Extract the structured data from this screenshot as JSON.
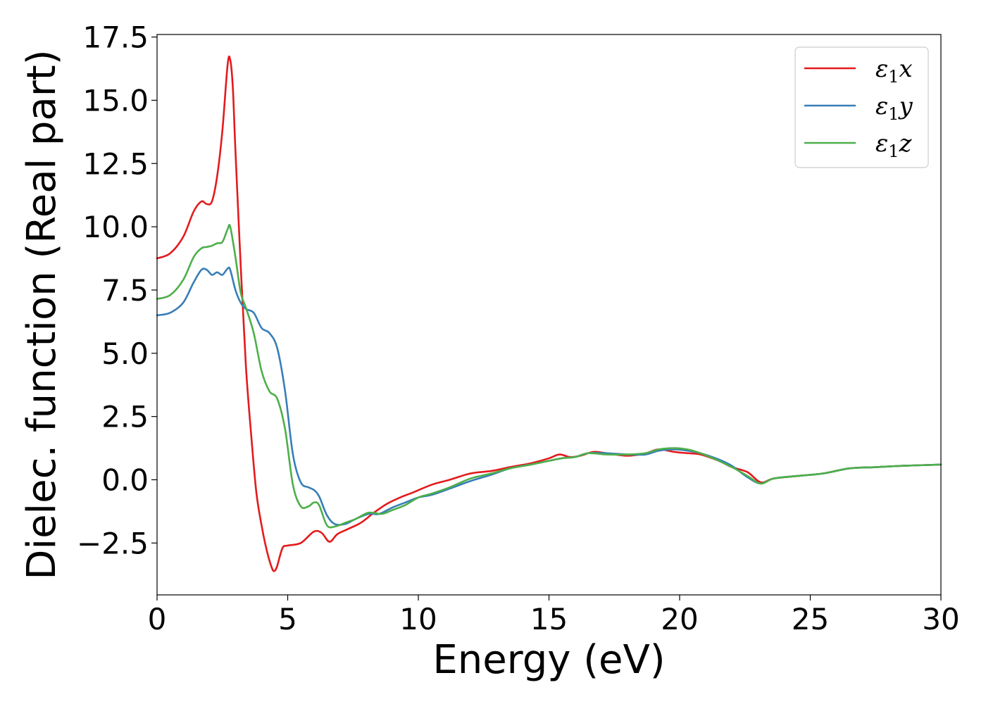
{
  "chart_data": {
    "type": "line",
    "title": "",
    "xlabel": "Energy (eV)",
    "ylabel": "Dielec. function (Real part)",
    "xlim": [
      0,
      30
    ],
    "ylim": [
      -4.55,
      17.6
    ],
    "x_ticks": [
      0,
      5,
      10,
      15,
      20,
      25,
      30
    ],
    "x_tick_labels": [
      "0",
      "5",
      "10",
      "15",
      "20",
      "25",
      "30"
    ],
    "y_ticks": [
      -2.5,
      0.0,
      2.5,
      5.0,
      7.5,
      10.0,
      12.5,
      15.0,
      17.5
    ],
    "y_tick_labels": [
      "−2.5",
      "0.0",
      "2.5",
      "5.0",
      "7.5",
      "10.0",
      "12.5",
      "15.0",
      "17.5"
    ],
    "grid": false,
    "legend_position": "top-right",
    "legend": [
      {
        "base": "ε",
        "sub": "1",
        "comp": "x",
        "color": "#e41a1c"
      },
      {
        "base": "ε",
        "sub": "1",
        "comp": "y",
        "color": "#377eb8"
      },
      {
        "base": "ε",
        "sub": "1",
        "comp": "z",
        "color": "#4daf4a"
      }
    ],
    "series": [
      {
        "color": "#e41a1c",
        "points": [
          [
            0,
            8.75
          ],
          [
            0.5,
            8.95
          ],
          [
            1.0,
            9.6
          ],
          [
            1.4,
            10.6
          ],
          [
            1.7,
            11.0
          ],
          [
            1.9,
            10.9
          ],
          [
            2.1,
            11.0
          ],
          [
            2.3,
            12.0
          ],
          [
            2.5,
            13.8
          ],
          [
            2.7,
            16.4
          ],
          [
            2.8,
            16.6
          ],
          [
            2.9,
            15.5
          ],
          [
            3.0,
            13.0
          ],
          [
            3.2,
            8.5
          ],
          [
            3.4,
            4.5
          ],
          [
            3.6,
            1.8
          ],
          [
            3.8,
            -0.5
          ],
          [
            4.0,
            -1.8
          ],
          [
            4.2,
            -2.8
          ],
          [
            4.4,
            -3.5
          ],
          [
            4.5,
            -3.6
          ],
          [
            4.6,
            -3.4
          ],
          [
            4.8,
            -2.7
          ],
          [
            5.0,
            -2.6
          ],
          [
            5.5,
            -2.5
          ],
          [
            6.0,
            -2.05
          ],
          [
            6.3,
            -2.1
          ],
          [
            6.6,
            -2.45
          ],
          [
            6.9,
            -2.15
          ],
          [
            7.3,
            -1.95
          ],
          [
            7.8,
            -1.7
          ],
          [
            8.3,
            -1.3
          ],
          [
            8.8,
            -0.95
          ],
          [
            9.3,
            -0.7
          ],
          [
            9.8,
            -0.5
          ],
          [
            10.5,
            -0.2
          ],
          [
            11.2,
            0.0
          ],
          [
            12.0,
            0.25
          ],
          [
            12.8,
            0.35
          ],
          [
            13.5,
            0.5
          ],
          [
            14.3,
            0.65
          ],
          [
            15.0,
            0.85
          ],
          [
            15.4,
            1.0
          ],
          [
            15.8,
            0.9
          ],
          [
            16.2,
            0.95
          ],
          [
            16.7,
            1.1
          ],
          [
            17.2,
            1.05
          ],
          [
            18.0,
            0.95
          ],
          [
            18.7,
            1.05
          ],
          [
            19.2,
            1.2
          ],
          [
            19.8,
            1.1
          ],
          [
            20.3,
            1.05
          ],
          [
            20.8,
            1.0
          ],
          [
            21.5,
            0.75
          ],
          [
            22.0,
            0.5
          ],
          [
            22.6,
            0.3
          ],
          [
            23.1,
            -0.1
          ],
          [
            23.6,
            0.05
          ],
          [
            24.5,
            0.15
          ],
          [
            25.5,
            0.25
          ],
          [
            26.5,
            0.45
          ],
          [
            27.5,
            0.5
          ],
          [
            28.5,
            0.55
          ],
          [
            30,
            0.6
          ]
        ]
      },
      {
        "color": "#377eb8",
        "points": [
          [
            0,
            6.5
          ],
          [
            0.5,
            6.6
          ],
          [
            1.0,
            7.0
          ],
          [
            1.4,
            7.8
          ],
          [
            1.7,
            8.3
          ],
          [
            1.9,
            8.3
          ],
          [
            2.1,
            8.1
          ],
          [
            2.3,
            8.2
          ],
          [
            2.5,
            8.1
          ],
          [
            2.7,
            8.35
          ],
          [
            2.8,
            8.3
          ],
          [
            3.0,
            7.5
          ],
          [
            3.2,
            7.0
          ],
          [
            3.4,
            6.75
          ],
          [
            3.7,
            6.6
          ],
          [
            4.0,
            6.0
          ],
          [
            4.3,
            5.8
          ],
          [
            4.6,
            5.2
          ],
          [
            4.9,
            3.5
          ],
          [
            5.2,
            1.0
          ],
          [
            5.5,
            -0.1
          ],
          [
            5.8,
            -0.3
          ],
          [
            6.0,
            -0.4
          ],
          [
            6.2,
            -0.65
          ],
          [
            6.5,
            -1.4
          ],
          [
            6.8,
            -1.75
          ],
          [
            7.2,
            -1.75
          ],
          [
            7.6,
            -1.55
          ],
          [
            8.1,
            -1.35
          ],
          [
            8.5,
            -1.35
          ],
          [
            9.0,
            -1.1
          ],
          [
            9.5,
            -0.9
          ],
          [
            10.0,
            -0.7
          ],
          [
            10.5,
            -0.6
          ],
          [
            11.2,
            -0.35
          ],
          [
            12.0,
            -0.05
          ],
          [
            12.8,
            0.2
          ],
          [
            13.5,
            0.45
          ],
          [
            14.3,
            0.6
          ],
          [
            15.0,
            0.75
          ],
          [
            15.5,
            0.85
          ],
          [
            16.0,
            0.9
          ],
          [
            16.5,
            1.05
          ],
          [
            17.2,
            1.05
          ],
          [
            18.0,
            1.0
          ],
          [
            18.7,
            1.0
          ],
          [
            19.2,
            1.15
          ],
          [
            19.8,
            1.2
          ],
          [
            20.3,
            1.15
          ],
          [
            20.8,
            1.05
          ],
          [
            21.5,
            0.8
          ],
          [
            22.0,
            0.55
          ],
          [
            22.6,
            0.1
          ],
          [
            23.1,
            -0.15
          ],
          [
            23.6,
            0.05
          ],
          [
            24.5,
            0.15
          ],
          [
            25.5,
            0.25
          ],
          [
            26.5,
            0.45
          ],
          [
            27.5,
            0.5
          ],
          [
            28.5,
            0.55
          ],
          [
            30,
            0.6
          ]
        ]
      },
      {
        "color": "#4daf4a",
        "points": [
          [
            0,
            7.15
          ],
          [
            0.5,
            7.3
          ],
          [
            1.0,
            7.9
          ],
          [
            1.4,
            8.8
          ],
          [
            1.7,
            9.15
          ],
          [
            1.9,
            9.2
          ],
          [
            2.1,
            9.25
          ],
          [
            2.3,
            9.35
          ],
          [
            2.5,
            9.4
          ],
          [
            2.7,
            9.9
          ],
          [
            2.8,
            10.0
          ],
          [
            3.0,
            8.8
          ],
          [
            3.2,
            7.4
          ],
          [
            3.4,
            6.8
          ],
          [
            3.7,
            5.8
          ],
          [
            4.0,
            4.3
          ],
          [
            4.3,
            3.5
          ],
          [
            4.6,
            3.2
          ],
          [
            4.9,
            2.0
          ],
          [
            5.2,
            -0.2
          ],
          [
            5.5,
            -1.05
          ],
          [
            5.8,
            -1.05
          ],
          [
            6.0,
            -0.9
          ],
          [
            6.2,
            -1.0
          ],
          [
            6.5,
            -1.8
          ],
          [
            6.8,
            -1.85
          ],
          [
            7.2,
            -1.7
          ],
          [
            7.6,
            -1.55
          ],
          [
            8.1,
            -1.3
          ],
          [
            8.6,
            -1.35
          ],
          [
            9.0,
            -1.2
          ],
          [
            9.5,
            -1.0
          ],
          [
            10.0,
            -0.7
          ],
          [
            10.5,
            -0.55
          ],
          [
            11.2,
            -0.3
          ],
          [
            12.0,
            0.05
          ],
          [
            12.8,
            0.25
          ],
          [
            13.5,
            0.45
          ],
          [
            14.3,
            0.6
          ],
          [
            15.0,
            0.75
          ],
          [
            15.5,
            0.85
          ],
          [
            16.0,
            0.9
          ],
          [
            16.5,
            1.05
          ],
          [
            17.2,
            1.0
          ],
          [
            18.0,
            1.0
          ],
          [
            18.7,
            1.05
          ],
          [
            19.2,
            1.2
          ],
          [
            19.8,
            1.25
          ],
          [
            20.3,
            1.2
          ],
          [
            20.8,
            1.05
          ],
          [
            21.5,
            0.75
          ],
          [
            22.0,
            0.5
          ],
          [
            22.6,
            0.15
          ],
          [
            23.1,
            -0.15
          ],
          [
            23.6,
            0.05
          ],
          [
            24.5,
            0.15
          ],
          [
            25.5,
            0.25
          ],
          [
            26.5,
            0.45
          ],
          [
            27.5,
            0.5
          ],
          [
            28.5,
            0.55
          ],
          [
            30,
            0.6
          ]
        ]
      }
    ]
  }
}
